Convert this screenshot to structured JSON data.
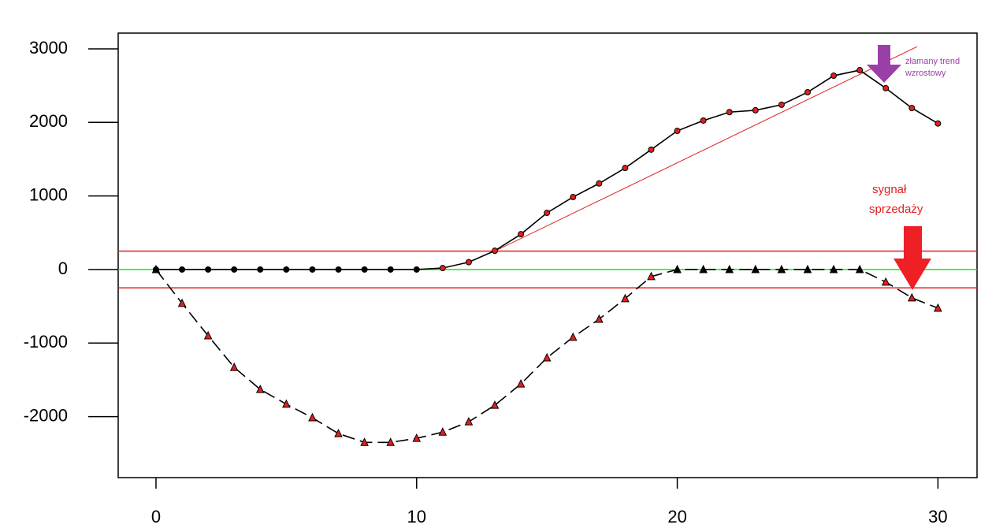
{
  "chart_data": {
    "type": "line",
    "x": [
      0,
      1,
      2,
      3,
      4,
      5,
      6,
      7,
      8,
      9,
      10,
      11,
      12,
      13,
      14,
      15,
      16,
      17,
      18,
      19,
      20,
      21,
      22,
      23,
      24,
      25,
      26,
      27,
      28,
      29,
      30
    ],
    "series": [
      {
        "color": "#000000",
        "marker": "circle",
        "marker_color": "#e02020",
        "line_style": "solid",
        "values": [
          0,
          0,
          0,
          0,
          0,
          0,
          0,
          0,
          0,
          0,
          0,
          20,
          100,
          255,
          480,
          770,
          985,
          1170,
          1380,
          1630,
          1885,
          2025,
          2140,
          2165,
          2240,
          2410,
          2635,
          2710,
          2465,
          2195,
          1985
        ]
      },
      {
        "color": "#000000",
        "marker": "triangle",
        "marker_color": "#e02020",
        "line_style": "dashed",
        "values": [
          0,
          -460,
          -900,
          -1330,
          -1630,
          -1830,
          -2015,
          -2230,
          -2350,
          -2350,
          -2295,
          -2210,
          -2070,
          -1845,
          -1555,
          -1200,
          -920,
          -675,
          -395,
          -95,
          0,
          0,
          0,
          0,
          0,
          0,
          0,
          0,
          -170,
          -385,
          -525
        ]
      }
    ],
    "reference_lines": [
      {
        "value": 250,
        "color": "#e02020"
      },
      {
        "value": 0,
        "color": "#22dd22"
      },
      {
        "value": -250,
        "color": "#e02020"
      }
    ],
    "trend_line": {
      "x": [
        13,
        29.2
      ],
      "values": [
        250,
        3030
      ],
      "color": "#e02020"
    },
    "xlim": [
      -1.45,
      31.5
    ],
    "ylim": [
      -2829,
      3214
    ],
    "xticks": [
      0,
      10,
      20,
      30
    ],
    "yticks": [
      -2000,
      -1000,
      0,
      1000,
      2000,
      3000
    ],
    "annotations": [
      {
        "lines": [
          "złamany trend",
          "wzrostowy"
        ],
        "color": "#9b3fa8"
      },
      {
        "lines": [
          "sygnał",
          "sprzedaży"
        ],
        "color": "#e02020"
      }
    ]
  }
}
